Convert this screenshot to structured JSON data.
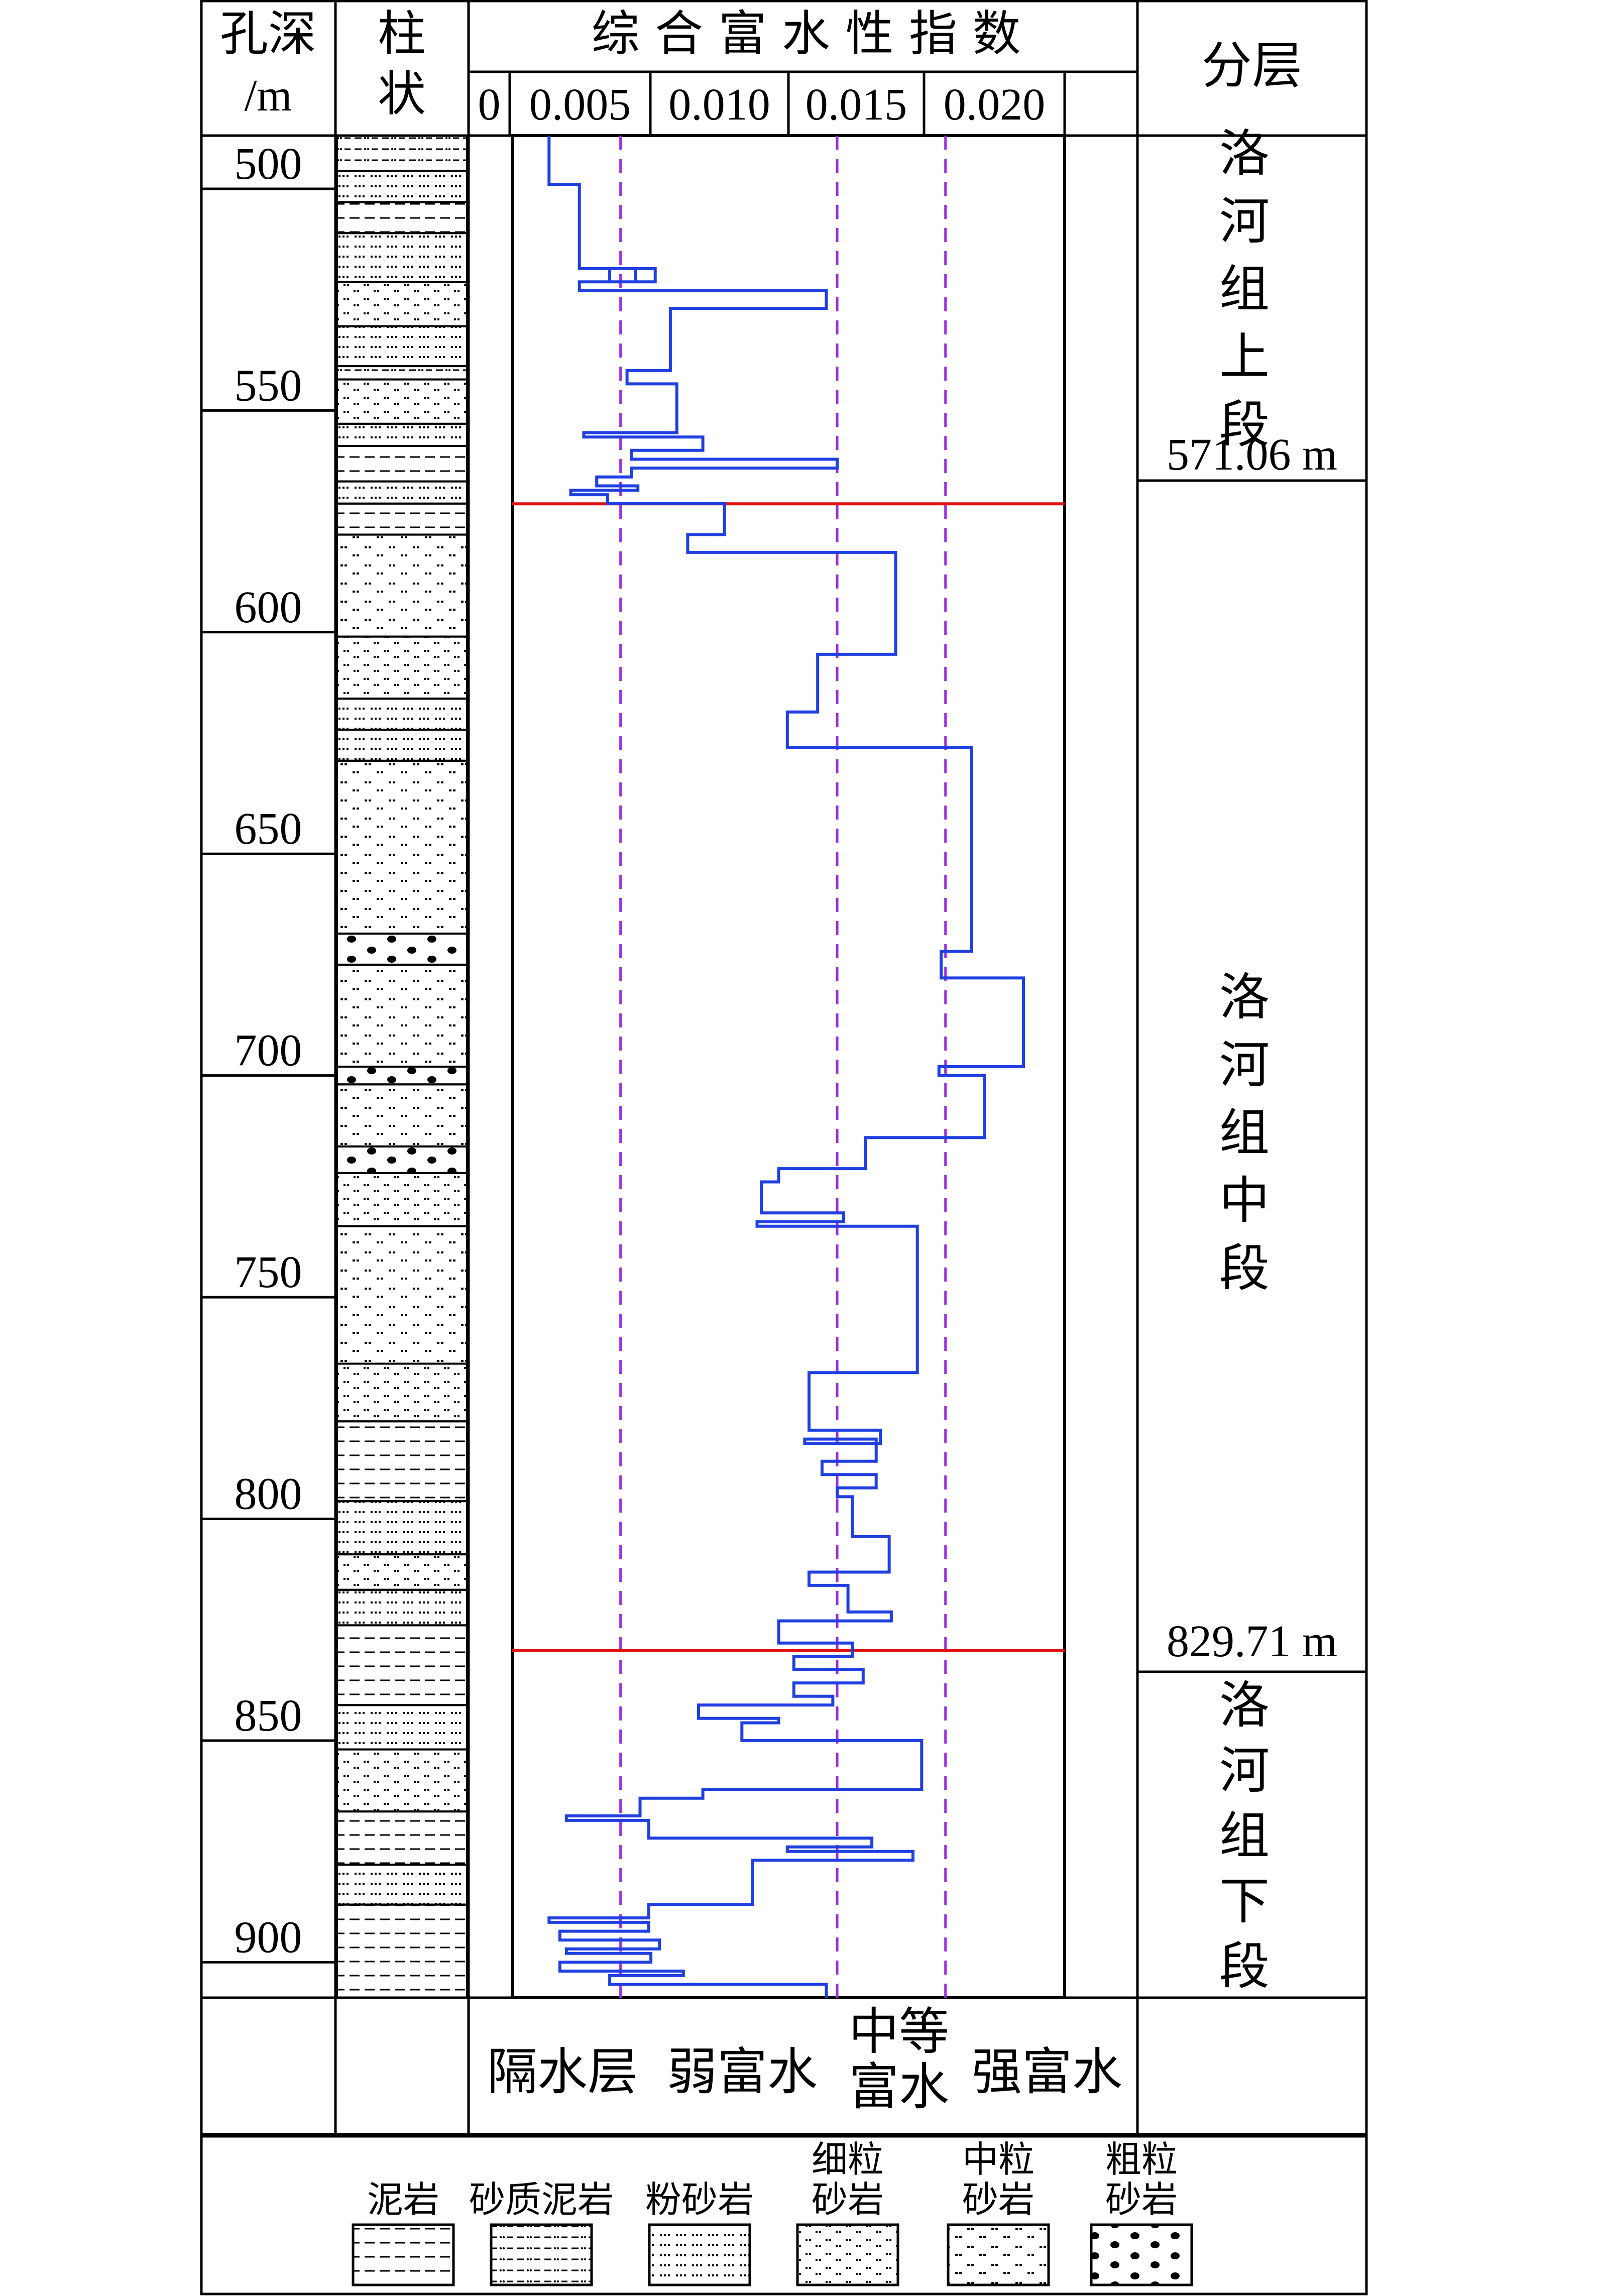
{
  "header": {
    "depth_label_line1": "孔深",
    "depth_label_line2": "/m",
    "column_label_line1": "柱",
    "column_label_line2": "状",
    "index_title": "综 合 富 水 性 指 数",
    "index_ticks": [
      "0",
      "0.005",
      "0.010",
      "0.015",
      "0.020"
    ],
    "layer_label": "分层"
  },
  "depth_ticks": [
    "500",
    "550",
    "600",
    "650",
    "700",
    "750",
    "800",
    "850",
    "900"
  ],
  "layers": [
    {
      "name_chars": [
        "洛",
        "河",
        "组",
        "上",
        "段"
      ],
      "boundary_label": "571.06 m"
    },
    {
      "name_chars": [
        "洛",
        "河",
        "组",
        "中",
        "段"
      ],
      "boundary_label": "829.71 m"
    },
    {
      "name_chars": [
        "洛",
        "河",
        "组",
        "下",
        "段"
      ]
    }
  ],
  "classes": {
    "isolating": "隔水层",
    "weak": "弱富水",
    "medium_line1": "中等",
    "medium_line2": "富水",
    "strong": "强富水"
  },
  "legend": [
    {
      "label_line1": "泥岩",
      "pattern": "mudstone"
    },
    {
      "label_line1": "砂质泥岩",
      "pattern": "sandy-mudstone"
    },
    {
      "label_line1": "粉砂岩",
      "pattern": "siltstone"
    },
    {
      "label_line1": "细粒",
      "label_line2": "砂岩",
      "pattern": "fine-sandstone"
    },
    {
      "label_line1": "中粒",
      "label_line2": "砂岩",
      "pattern": "medium-sandstone"
    },
    {
      "label_line1": "粗粒",
      "label_line2": "砂岩",
      "pattern": "coarse-sandstone"
    }
  ],
  "chart_data": {
    "type": "line",
    "x_axis": "index",
    "y_axis": "depth_m",
    "thresholds": [
      0.005,
      0.015,
      0.02
    ],
    "boundaries_m": [
      571.06,
      829.71
    ],
    "colors": {
      "curve": "#1f3fe0",
      "threshold": "#9b2ee0",
      "boundary": "#e01010",
      "frame": "#000000"
    },
    "series": [
      {
        "step_points": [
          [
            0.0017,
            488
          ],
          [
            0.0017,
            499
          ],
          [
            0.0031,
            499
          ],
          [
            0.0031,
            518
          ],
          [
            0.0057,
            518
          ],
          [
            0.0057,
            521
          ],
          [
            0.0045,
            521
          ],
          [
            0.0045,
            518
          ],
          [
            0.0066,
            518
          ],
          [
            0.0066,
            521
          ],
          [
            0.0031,
            521
          ],
          [
            0.0031,
            523
          ],
          [
            0.0145,
            523
          ],
          [
            0.0145,
            527
          ],
          [
            0.0073,
            527
          ],
          [
            0.0073,
            541
          ],
          [
            0.0053,
            541
          ],
          [
            0.0053,
            544
          ],
          [
            0.0076,
            544
          ],
          [
            0.0076,
            555
          ],
          [
            0.0033,
            555
          ],
          [
            0.0033,
            556
          ],
          [
            0.0088,
            556
          ],
          [
            0.0088,
            559
          ],
          [
            0.0055,
            559
          ],
          [
            0.0055,
            561
          ],
          [
            0.015,
            561
          ],
          [
            0.015,
            563
          ],
          [
            0.0055,
            563
          ],
          [
            0.0055,
            565
          ],
          [
            0.0039,
            565
          ],
          [
            0.0039,
            567
          ],
          [
            0.0058,
            567
          ],
          [
            0.0058,
            568
          ],
          [
            0.0027,
            568
          ],
          [
            0.0027,
            569
          ],
          [
            0.0044,
            569
          ],
          [
            0.0044,
            571
          ],
          [
            0.0098,
            571
          ],
          [
            0.0098,
            578
          ],
          [
            0.0081,
            578
          ],
          [
            0.0081,
            582
          ],
          [
            0.0177,
            582
          ],
          [
            0.0177,
            605
          ],
          [
            0.0141,
            605
          ],
          [
            0.0141,
            618
          ],
          [
            0.0127,
            618
          ],
          [
            0.0127,
            626
          ],
          [
            0.0212,
            626
          ],
          [
            0.0212,
            672
          ],
          [
            0.0198,
            672
          ],
          [
            0.0198,
            678
          ],
          [
            0.0236,
            678
          ],
          [
            0.0236,
            698
          ],
          [
            0.0197,
            698
          ],
          [
            0.0197,
            700
          ],
          [
            0.0218,
            700
          ],
          [
            0.0218,
            714
          ],
          [
            0.0163,
            714
          ],
          [
            0.0163,
            721
          ],
          [
            0.0123,
            721
          ],
          [
            0.0123,
            724
          ],
          [
            0.0115,
            724
          ],
          [
            0.0115,
            731
          ],
          [
            0.0153,
            731
          ],
          [
            0.0153,
            733
          ],
          [
            0.0113,
            733
          ],
          [
            0.0113,
            734
          ],
          [
            0.0187,
            734
          ],
          [
            0.0187,
            767
          ],
          [
            0.0137,
            767
          ],
          [
            0.0137,
            780
          ],
          [
            0.017,
            780
          ],
          [
            0.017,
            783
          ],
          [
            0.0135,
            783
          ],
          [
            0.0135,
            782
          ],
          [
            0.0168,
            782
          ],
          [
            0.0168,
            787
          ],
          [
            0.0143,
            787
          ],
          [
            0.0143,
            790
          ],
          [
            0.0168,
            790
          ],
          [
            0.0168,
            793
          ],
          [
            0.015,
            793
          ],
          [
            0.015,
            795
          ],
          [
            0.0157,
            795
          ],
          [
            0.0157,
            804
          ],
          [
            0.0174,
            804
          ],
          [
            0.0174,
            812
          ],
          [
            0.0137,
            812
          ],
          [
            0.0137,
            815
          ],
          [
            0.0155,
            815
          ],
          [
            0.0155,
            821
          ],
          [
            0.0175,
            821
          ],
          [
            0.0175,
            823
          ],
          [
            0.0123,
            823
          ],
          [
            0.0123,
            828
          ],
          [
            0.0157,
            828
          ],
          [
            0.0157,
            831
          ],
          [
            0.013,
            831
          ],
          [
            0.013,
            834
          ],
          [
            0.0162,
            834
          ],
          [
            0.0162,
            837
          ],
          [
            0.013,
            837
          ],
          [
            0.013,
            840
          ],
          [
            0.0148,
            840
          ],
          [
            0.0148,
            842
          ],
          [
            0.0086,
            842
          ],
          [
            0.0086,
            845
          ],
          [
            0.0123,
            845
          ],
          [
            0.0123,
            846
          ],
          [
            0.0106,
            846
          ],
          [
            0.0106,
            850
          ],
          [
            0.0189,
            850
          ],
          [
            0.0189,
            861
          ],
          [
            0.0088,
            861
          ],
          [
            0.0088,
            863
          ],
          [
            0.0059,
            863
          ],
          [
            0.0059,
            867
          ],
          [
            0.0025,
            867
          ],
          [
            0.0025,
            868
          ],
          [
            0.0063,
            868
          ],
          [
            0.0063,
            872
          ],
          [
            0.0166,
            872
          ],
          [
            0.0166,
            874
          ],
          [
            0.0127,
            874
          ],
          [
            0.0127,
            875
          ],
          [
            0.0185,
            875
          ],
          [
            0.0185,
            877
          ],
          [
            0.0111,
            877
          ],
          [
            0.0111,
            887
          ],
          [
            0.0063,
            887
          ],
          [
            0.0063,
            890
          ],
          [
            0.0017,
            890
          ],
          [
            0.0017,
            891
          ],
          [
            0.0063,
            891
          ],
          [
            0.0063,
            893
          ],
          [
            0.0022,
            893
          ],
          [
            0.0022,
            895
          ],
          [
            0.0068,
            895
          ],
          [
            0.0068,
            897
          ],
          [
            0.0025,
            897
          ],
          [
            0.0025,
            898
          ],
          [
            0.0064,
            898
          ],
          [
            0.0064,
            900
          ],
          [
            0.0022,
            900
          ],
          [
            0.0022,
            902
          ],
          [
            0.0079,
            902
          ],
          [
            0.0079,
            903
          ],
          [
            0.0045,
            903
          ],
          [
            0.0045,
            905
          ],
          [
            0.0145,
            905
          ],
          [
            0.0145,
            908
          ]
        ]
      }
    ]
  }
}
